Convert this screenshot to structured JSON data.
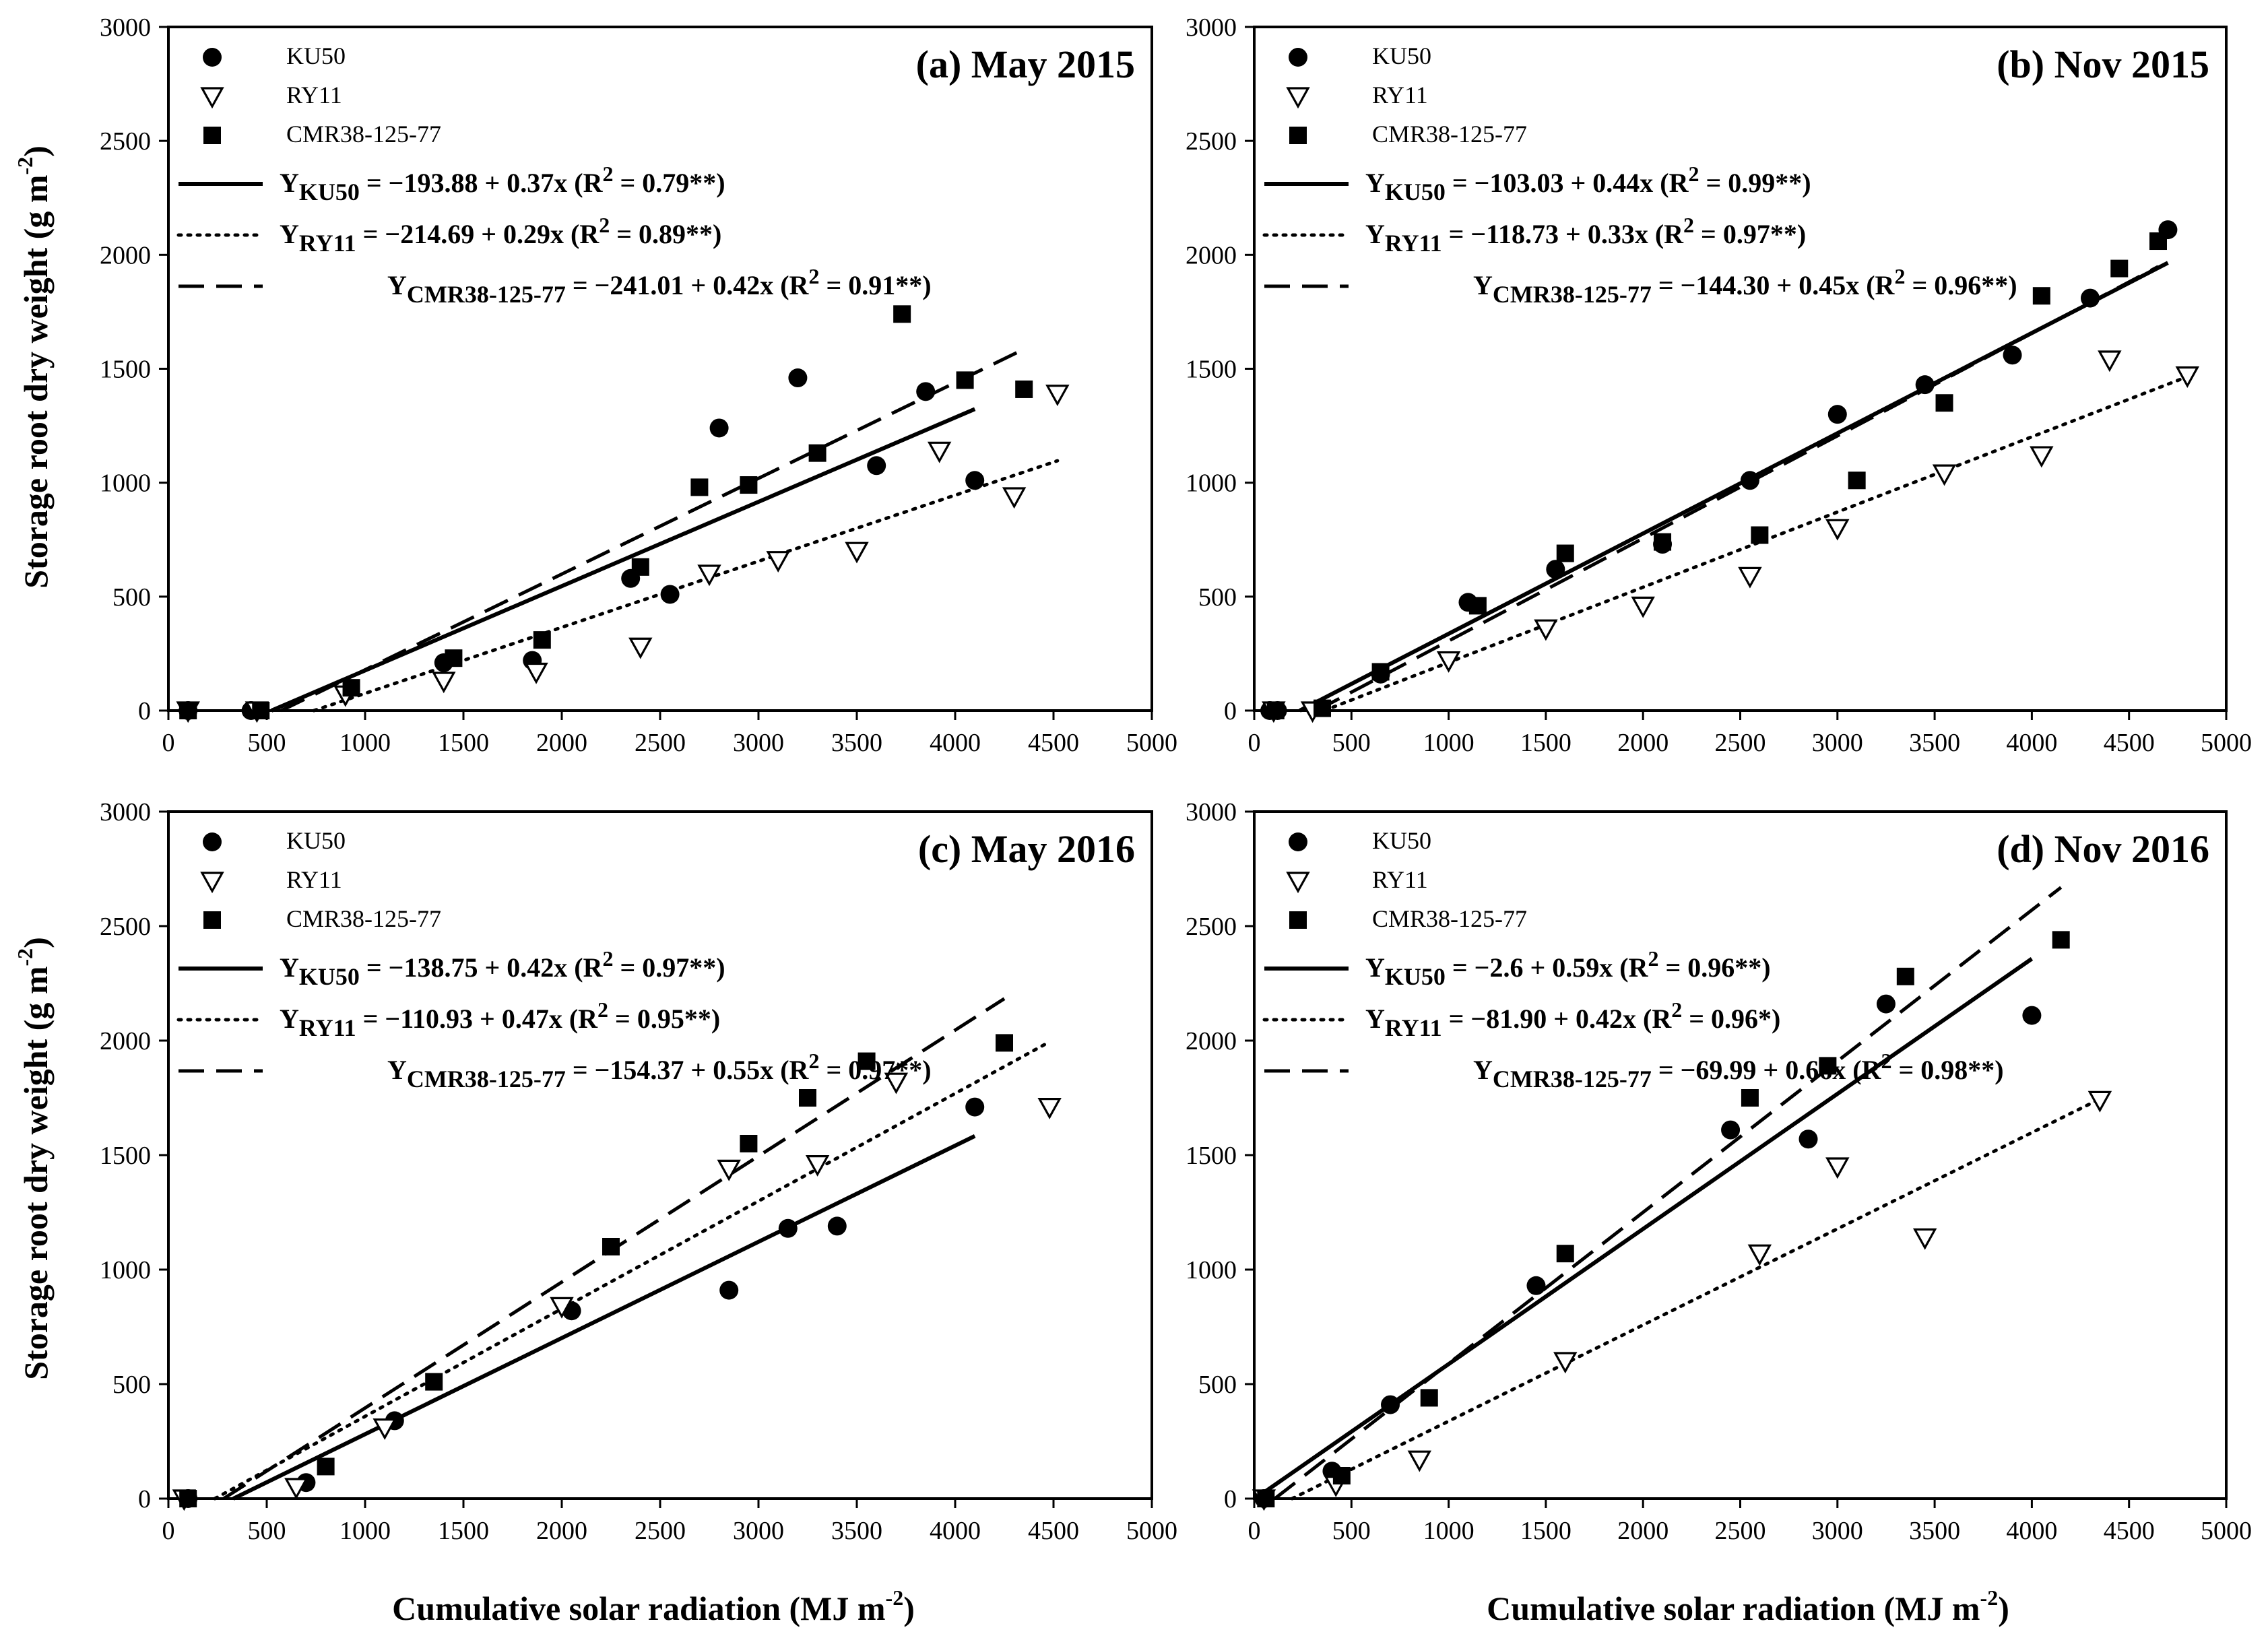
{
  "figure": {
    "xlabel": "Cumulative solar radiation (MJ m",
    "xlabel_sup": "-2",
    "xlabel_end": ")",
    "ylabel": "Storage root dry weight (g m",
    "ylabel_sup": "-2",
    "ylabel_end": ")"
  },
  "colors": {
    "ink": "#000000",
    "background": "#ffffff"
  },
  "chart_data": [
    {
      "type": "scatter",
      "title": "(a) May 2015",
      "xlim": [
        0,
        5000
      ],
      "ylim": [
        0,
        3000
      ],
      "xticks": [
        "0",
        "500",
        "1000",
        "1500",
        "2000",
        "2500",
        "3000",
        "3500",
        "4000",
        "4500",
        "5000"
      ],
      "yticks": [
        "0",
        "500",
        "1000",
        "1500",
        "2000",
        "2500",
        "3000"
      ],
      "series": [
        {
          "name": "KU50",
          "marker": "circle",
          "line": "solid",
          "points": [
            [
              100,
              0
            ],
            [
              420,
              0
            ],
            [
              1400,
              210
            ],
            [
              1850,
              220
            ],
            [
              2350,
              580
            ],
            [
              2550,
              510
            ],
            [
              2800,
              1240
            ],
            [
              3200,
              1460
            ],
            [
              3600,
              1075
            ],
            [
              3850,
              1400
            ],
            [
              4100,
              1010
            ]
          ],
          "fit": {
            "x": [
              524,
              4100
            ],
            "a": -193.88,
            "b": 0.37
          },
          "eq_label": "Y",
          "eq_sub": "KU50",
          "eq_text": " = −193.88 + 0.37x (R",
          "eq_r2": "2",
          "eq_end": " = 0.79**)"
        },
        {
          "name": "RY11",
          "marker": "triangle-down",
          "line": "dotted",
          "points": [
            [
              100,
              0
            ],
            [
              450,
              0
            ],
            [
              900,
              70
            ],
            [
              1400,
              130
            ],
            [
              1870,
              170
            ],
            [
              2400,
              280
            ],
            [
              2750,
              600
            ],
            [
              3100,
              660
            ],
            [
              3500,
              700
            ],
            [
              3920,
              1140
            ],
            [
              4300,
              940
            ],
            [
              4520,
              1390
            ]
          ],
          "fit": {
            "x": [
              740,
              4520
            ],
            "a": -214.69,
            "b": 0.29
          },
          "eq_label": "Y",
          "eq_sub": "RY11",
          "eq_text": " = −214.69 + 0.29x (R",
          "eq_r2": "2",
          "eq_end": " = 0.89**)"
        },
        {
          "name": "CMR38-125-77",
          "marker": "square",
          "line": "dashed",
          "points": [
            [
              100,
              0
            ],
            [
              470,
              0
            ],
            [
              930,
              100
            ],
            [
              1450,
              230
            ],
            [
              1900,
              310
            ],
            [
              2400,
              630
            ],
            [
              2700,
              980
            ],
            [
              2950,
              990
            ],
            [
              3300,
              1130
            ],
            [
              3730,
              1740
            ],
            [
              4050,
              1450
            ],
            [
              4350,
              1410
            ]
          ],
          "fit": {
            "x": [
              574,
              4350
            ],
            "a": -241.01,
            "b": 0.42
          },
          "eq_label": "Y",
          "eq_sub": "CMR38-125-77",
          "eq_text": " = −241.01 + 0.42x (R",
          "eq_r2": "2",
          "eq_end": " = 0.91**)"
        }
      ]
    },
    {
      "type": "scatter",
      "title": "(b) Nov 2015",
      "xlim": [
        0,
        5000
      ],
      "ylim": [
        0,
        3000
      ],
      "xticks": [
        "0",
        "500",
        "1000",
        "1500",
        "2000",
        "2500",
        "3000",
        "3500",
        "4000",
        "4500",
        "5000"
      ],
      "yticks": [
        "0",
        "500",
        "1000",
        "1500",
        "2000",
        "2500",
        "3000"
      ],
      "series": [
        {
          "name": "KU50",
          "marker": "circle",
          "line": "solid",
          "points": [
            [
              80,
              0
            ],
            [
              120,
              0
            ],
            [
              650,
              160
            ],
            [
              1100,
              475
            ],
            [
              1550,
              620
            ],
            [
              2100,
              730
            ],
            [
              2550,
              1010
            ],
            [
              3000,
              1300
            ],
            [
              3450,
              1430
            ],
            [
              3900,
              1560
            ],
            [
              4300,
              1810
            ],
            [
              4700,
              2110
            ]
          ],
          "fit": {
            "x": [
              234,
              4700
            ],
            "a": -103.03,
            "b": 0.44
          },
          "eq_label": "Y",
          "eq_sub": "KU50",
          "eq_text": " = −103.03 + 0.44x (R",
          "eq_r2": "2",
          "eq_end": " = 0.99**)"
        },
        {
          "name": "RY11",
          "marker": "triangle-down",
          "line": "dotted",
          "points": [
            [
              100,
              0
            ],
            [
              300,
              0
            ],
            [
              1000,
              220
            ],
            [
              1500,
              360
            ],
            [
              2000,
              460
            ],
            [
              2550,
              590
            ],
            [
              3000,
              800
            ],
            [
              3550,
              1040
            ],
            [
              4050,
              1120
            ],
            [
              4400,
              1540
            ],
            [
              4800,
              1470
            ]
          ],
          "fit": {
            "x": [
              360,
              4800
            ],
            "a": -118.73,
            "b": 0.33
          },
          "eq_label": "Y",
          "eq_sub": "RY11",
          "eq_text": " = −118.73 + 0.33x (R",
          "eq_r2": "2",
          "eq_end": " = 0.97**)"
        },
        {
          "name": "CMR38-125-77",
          "marker": "square",
          "line": "dashed",
          "points": [
            [
              110,
              0
            ],
            [
              350,
              10
            ],
            [
              650,
              170
            ],
            [
              1150,
              460
            ],
            [
              1600,
              690
            ],
            [
              2100,
              740
            ],
            [
              2600,
              770
            ],
            [
              3100,
              1010
            ],
            [
              3550,
              1350
            ],
            [
              4050,
              1820
            ],
            [
              4450,
              1940
            ],
            [
              4650,
              2060
            ]
          ],
          "fit": {
            "x": [
              321,
              4650
            ],
            "a": -144.3,
            "b": 0.45
          },
          "eq_label": "Y",
          "eq_sub": "CMR38-125-77",
          "eq_text": " = −144.30 + 0.45x (R",
          "eq_r2": "2",
          "eq_end": " = 0.96**)"
        }
      ]
    },
    {
      "type": "scatter",
      "title": "(c) May 2016",
      "xlim": [
        0,
        5000
      ],
      "ylim": [
        0,
        3000
      ],
      "xticks": [
        "0",
        "500",
        "1000",
        "1500",
        "2000",
        "2500",
        "3000",
        "3500",
        "4000",
        "4500",
        "5000"
      ],
      "yticks": [
        "0",
        "500",
        "1000",
        "1500",
        "2000",
        "2500",
        "3000"
      ],
      "series": [
        {
          "name": "KU50",
          "marker": "circle",
          "line": "solid",
          "points": [
            [
              100,
              0
            ],
            [
              700,
              70
            ],
            [
              1150,
              340
            ],
            [
              2050,
              820
            ],
            [
              2850,
              910
            ],
            [
              3150,
              1180
            ],
            [
              3400,
              1190
            ],
            [
              4100,
              1710
            ]
          ],
          "fit": {
            "x": [
              330,
              4100
            ],
            "a": -138.75,
            "b": 0.42
          },
          "eq_label": "Y",
          "eq_sub": "KU50",
          "eq_text": " = −138.75 + 0.42x (R",
          "eq_r2": "2",
          "eq_end": " = 0.97**)"
        },
        {
          "name": "RY11",
          "marker": "triangle-down",
          "line": "dotted",
          "points": [
            [
              80,
              0
            ],
            [
              650,
              50
            ],
            [
              1100,
              310
            ],
            [
              2000,
              840
            ],
            [
              2850,
              1440
            ],
            [
              3300,
              1460
            ],
            [
              3700,
              1820
            ],
            [
              4480,
              1710
            ]
          ],
          "fit": {
            "x": [
              236,
              4480
            ],
            "a": -110.93,
            "b": 0.47
          },
          "eq_label": "Y",
          "eq_sub": "RY11",
          "eq_text": " = −110.93 + 0.47x (R",
          "eq_r2": "2",
          "eq_end": " = 0.95**)"
        },
        {
          "name": "CMR38-125-77",
          "marker": "square",
          "line": "dashed",
          "points": [
            [
              100,
              0
            ],
            [
              800,
              140
            ],
            [
              1350,
              510
            ],
            [
              2250,
              1100
            ],
            [
              2950,
              1550
            ],
            [
              3250,
              1750
            ],
            [
              3550,
              1910
            ],
            [
              4250,
              1990
            ]
          ],
          "fit": {
            "x": [
              281,
              4250
            ],
            "a": -154.37,
            "b": 0.55
          },
          "eq_label": "Y",
          "eq_sub": "CMR38-125-77",
          "eq_text": " = −154.37 + 0.55x (R",
          "eq_r2": "2",
          "eq_end": " = 0.97**)"
        }
      ]
    },
    {
      "type": "scatter",
      "title": "(d) Nov 2016",
      "xlim": [
        0,
        5000
      ],
      "ylim": [
        0,
        3000
      ],
      "xticks": [
        "0",
        "500",
        "1000",
        "1500",
        "2000",
        "2500",
        "3000",
        "3500",
        "4000",
        "4500",
        "5000"
      ],
      "yticks": [
        "0",
        "500",
        "1000",
        "1500",
        "2000",
        "2500",
        "3000"
      ],
      "series": [
        {
          "name": "KU50",
          "marker": "circle",
          "line": "solid",
          "points": [
            [
              50,
              0
            ],
            [
              400,
              120
            ],
            [
              700,
              410
            ],
            [
              1450,
              930
            ],
            [
              2450,
              1610
            ],
            [
              2850,
              1570
            ],
            [
              3250,
              2160
            ],
            [
              4000,
              2110
            ]
          ],
          "fit": {
            "x": [
              5,
              4000
            ],
            "a": -2.6,
            "b": 0.59
          },
          "eq_label": "Y",
          "eq_sub": "KU50",
          "eq_text": " = −2.6 + 0.59x (R",
          "eq_r2": "2",
          "eq_end": " = 0.96**)"
        },
        {
          "name": "RY11",
          "marker": "triangle-down",
          "line": "dotted",
          "points": [
            [
              50,
              0
            ],
            [
              420,
              60
            ],
            [
              850,
              170
            ],
            [
              1600,
              600
            ],
            [
              2600,
              1070
            ],
            [
              3000,
              1450
            ],
            [
              3450,
              1140
            ],
            [
              4350,
              1740
            ]
          ],
          "fit": {
            "x": [
              195,
              4350
            ],
            "a": -81.9,
            "b": 0.42
          },
          "eq_label": "Y",
          "eq_sub": "RY11",
          "eq_text": " = −81.90 + 0.42x (R",
          "eq_r2": "2",
          "eq_end": " = 0.96*)"
        },
        {
          "name": "CMR38-125-77",
          "marker": "square",
          "line": "dashed",
          "points": [
            [
              60,
              0
            ],
            [
              450,
              100
            ],
            [
              900,
              440
            ],
            [
              1600,
              1070
            ],
            [
              2550,
              1750
            ],
            [
              2950,
              1890
            ],
            [
              3350,
              2280
            ],
            [
              4150,
              2440
            ]
          ],
          "fit": {
            "x": [
              106,
              4150
            ],
            "a": -69.99,
            "b": 0.66
          },
          "eq_label": "Y",
          "eq_sub": "CMR38-125-77",
          "eq_text": " = −69.99 + 0.66x (R",
          "eq_r2": "2",
          "eq_end": " = 0.98**)"
        }
      ]
    }
  ]
}
